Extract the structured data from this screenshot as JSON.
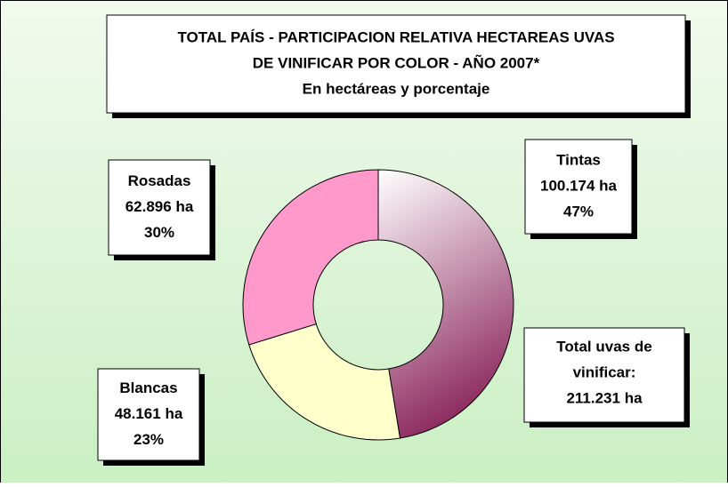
{
  "chart_data": {
    "type": "donut",
    "title": [
      "TOTAL PAÍS - PARTICIPACION RELATIVA HECTAREAS UVAS",
      "DE VINIFICAR POR COLOR  - AÑO 2007*"
    ],
    "subtitle": "En hectáreas y porcentaje",
    "categories": [
      "Tintas",
      "Blancas",
      "Rosadas"
    ],
    "values": [
      100174,
      48161,
      62896
    ],
    "value_labels": [
      "100.174 ha",
      "48.161 ha",
      "62.896 ha"
    ],
    "percent_labels": [
      "47%",
      "23%",
      "30%"
    ],
    "colors": [
      "#8e2c61",
      "#ffffcc",
      "#ff99cc"
    ],
    "fill_style": [
      "gradient",
      "solid",
      "solid"
    ],
    "total_label": [
      "Total uvas de",
      "vinificar:"
    ],
    "total_value_label": "211.231 ha"
  }
}
